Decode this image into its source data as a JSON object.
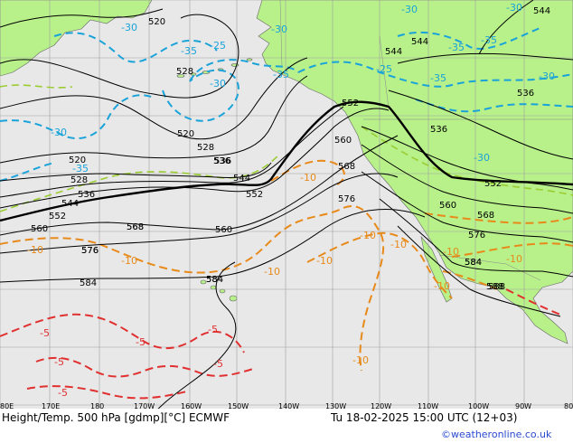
{
  "footer": {
    "title": "Height/Temp. 500 hPa [gdmp][°C] ECMWF",
    "datetime": "Tu 18-02-2025 15:00 UTC (12+03)",
    "credit": "©weatheronline.co.uk"
  },
  "longitude_labels": [
    "80E",
    "170E",
    "180",
    "170W",
    "160W",
    "150W",
    "140W",
    "130W",
    "120W",
    "110W",
    "100W",
    "90W",
    "80"
  ],
  "height_labels": [
    "520",
    "528",
    "520",
    "528",
    "536",
    "544",
    "552",
    "560",
    "568",
    "576",
    "584",
    "584",
    "520",
    "528",
    "536",
    "544",
    "552",
    "560",
    "568",
    "576",
    "584",
    "588",
    "544",
    "544",
    "552",
    "536",
    "560",
    "568",
    "576",
    "584",
    "536",
    "552",
    "560",
    "568",
    "576",
    "584",
    "588",
    "536",
    "544"
  ],
  "temp_cold_labels": [
    "-30",
    "-35",
    "-30",
    "-25",
    "-30",
    "-35",
    "-30",
    "-25",
    "-35",
    "-30",
    "-35",
    "-30",
    "-35",
    "-30",
    "-35",
    "-30"
  ],
  "temp_warm_labels": [
    "-10",
    "-10",
    "-10",
    "-10",
    "-10",
    "-10",
    "-10",
    "-10",
    "-10",
    "-10",
    "-10"
  ],
  "temp_hot_labels": [
    "-5",
    "-5",
    "-5",
    "-5",
    "-5",
    "-5"
  ],
  "colors": {
    "land": "#b8f08a",
    "ocean": "#e8e8e8",
    "grid": "#a0a0a0",
    "height_contour": "#000000",
    "temp_cold": "#1aa3d9",
    "temp_mid": "#9acd32",
    "temp_warm": "#e88a1a",
    "temp_hot": "#e03030",
    "credit": "#2a4bd0"
  }
}
